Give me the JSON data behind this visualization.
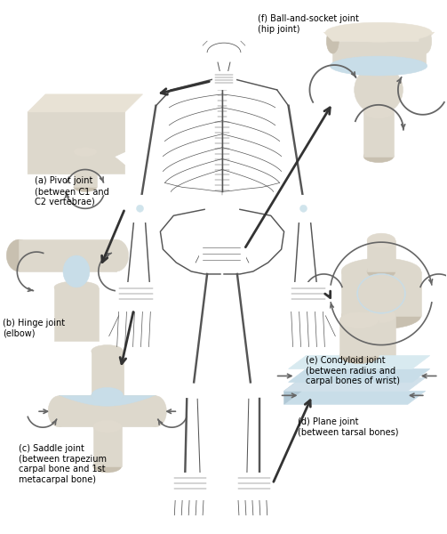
{
  "background_color": "#ffffff",
  "figsize": [
    5.03,
    6.0
  ],
  "dpi": 100,
  "bone_color": "#ddd8cc",
  "bone_edge": "#aaaaaa",
  "bone_shadow": "#c8c0b0",
  "blue_color": "#c8dde8",
  "arrow_color": "#333333",
  "gray_arrow": "#666666",
  "text_color": "#000000",
  "label_fontsize": 7.0,
  "skeleton_color": "#555555",
  "skeleton_lw": 0.7,
  "labels": {
    "a": "(a) Pivot joint\n(between C1 and\nC2 vertebrae)",
    "b": "(b) Hinge joint\n(elbow)",
    "c": "(c) Saddle joint\n(between trapezium\ncarpal bone and 1st\nmetacarpal bone)",
    "d": "(d) Plane joint\n(between tarsal bones)",
    "e": "(e) Condyloid joint\n(between radius and\ncarpal bones of wrist)",
    "f": "(f) Ball-and-socket joint\n(hip joint)"
  }
}
